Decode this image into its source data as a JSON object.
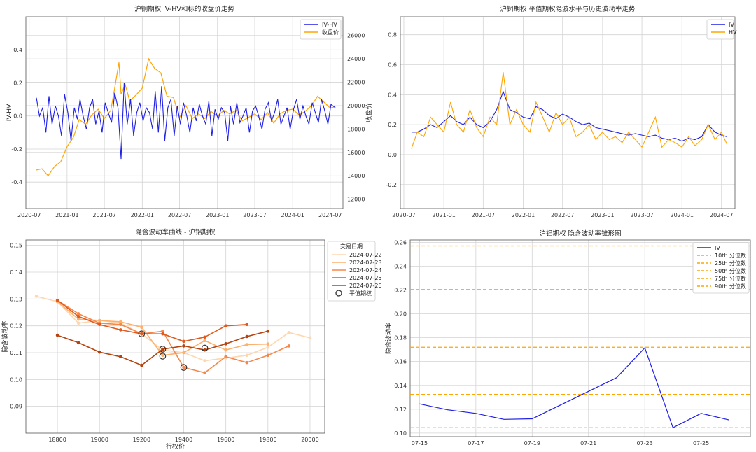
{
  "chart_data": [
    {
      "type": "line",
      "title": "沪铜期权 IV-HV和标的收盘价走势",
      "xlabel": "",
      "ylabel": "IV-HV",
      "y2label": "收盘价",
      "xlim": [
        "2020-06-15",
        "2024-09-01"
      ],
      "ylim": [
        -0.56,
        0.6
      ],
      "y2lim": [
        11200,
        27600
      ],
      "x_ticks": [
        "2020-07",
        "2021-01",
        "2021-07",
        "2022-01",
        "2022-07",
        "2023-01",
        "2023-07",
        "2024-01",
        "2024-07"
      ],
      "y_ticks": [
        "-0.4",
        "-0.2",
        "0.0",
        "0.2",
        "0.4"
      ],
      "y2_ticks": [
        "12000",
        "14000",
        "16000",
        "18000",
        "20000",
        "22000",
        "24000",
        "26000"
      ],
      "legend": "top-right",
      "colors": {
        "IV-HV": "#1f1fe6",
        "收盘价": "#ffa500",
        "left_axis": "#1f77b4",
        "right_axis": "#d62728"
      },
      "series": [
        {
          "name": "IV-HV",
          "axis": "left",
          "x": [
            "2020-08-05",
            "2020-08-20",
            "2020-09-05",
            "2020-09-20",
            "2020-10-05",
            "2020-10-20",
            "2020-11-05",
            "2020-11-20",
            "2020-12-05",
            "2020-12-20",
            "2021-01-05",
            "2021-01-20",
            "2021-02-05",
            "2021-02-20",
            "2021-03-05",
            "2021-03-20",
            "2021-04-05",
            "2021-04-20",
            "2021-05-05",
            "2021-05-20",
            "2021-06-05",
            "2021-06-20",
            "2021-07-05",
            "2021-07-20",
            "2021-08-05",
            "2021-08-20",
            "2021-09-05",
            "2021-09-20",
            "2021-10-05",
            "2021-10-20",
            "2021-11-05",
            "2021-11-20",
            "2021-12-05",
            "2021-12-20",
            "2022-01-05",
            "2022-01-20",
            "2022-02-05",
            "2022-02-20",
            "2022-03-05",
            "2022-03-20",
            "2022-04-05",
            "2022-04-20",
            "2022-05-05",
            "2022-05-20",
            "2022-06-05",
            "2022-06-20",
            "2022-07-05",
            "2022-07-20",
            "2022-08-05",
            "2022-08-20",
            "2022-09-05",
            "2022-09-20",
            "2022-10-05",
            "2022-10-20",
            "2022-11-05",
            "2022-11-20",
            "2022-12-05",
            "2022-12-20",
            "2023-01-05",
            "2023-01-20",
            "2023-02-05",
            "2023-02-20",
            "2023-03-05",
            "2023-03-20",
            "2023-04-05",
            "2023-04-20",
            "2023-05-05",
            "2023-05-20",
            "2023-06-05",
            "2023-06-20",
            "2023-07-05",
            "2023-07-20",
            "2023-08-05",
            "2023-08-20",
            "2023-09-05",
            "2023-09-20",
            "2023-10-05",
            "2023-10-20",
            "2023-11-05",
            "2023-11-20",
            "2023-12-05",
            "2023-12-20",
            "2024-01-05",
            "2024-01-20",
            "2024-02-05",
            "2024-02-20",
            "2024-03-05",
            "2024-03-20",
            "2024-04-05",
            "2024-04-20",
            "2024-05-05",
            "2024-05-20",
            "2024-06-05",
            "2024-06-20",
            "2024-07-05",
            "2024-07-26"
          ],
          "values": [
            0.11,
            0.0,
            0.05,
            -0.1,
            0.12,
            -0.05,
            0.06,
            0.0,
            -0.12,
            0.13,
            0.02,
            -0.15,
            0.05,
            -0.02,
            0.1,
            0.0,
            -0.08,
            0.05,
            0.1,
            -0.05,
            0.03,
            -0.1,
            0.08,
            0.02,
            -0.04,
            0.14,
            0.05,
            -0.26,
            0.2,
            -0.05,
            0.1,
            -0.12,
            0.02,
            0.08,
            -0.03,
            0.05,
            0.02,
            -0.08,
            0.15,
            -0.1,
            0.18,
            -0.15,
            0.05,
            0.1,
            -0.12,
            0.06,
            -0.05,
            0.08,
            0.0,
            -0.1,
            0.05,
            -0.03,
            0.07,
            0.0,
            -0.05,
            0.09,
            -0.12,
            0.04,
            -0.02,
            0.05,
            0.02,
            -0.15,
            0.06,
            -0.05,
            0.08,
            -0.04,
            0.0,
            0.05,
            -0.1,
            0.03,
            0.06,
            0.0,
            -0.08,
            0.04,
            0.08,
            -0.03,
            0.02,
            0.1,
            -0.05,
            0.0,
            0.05,
            -0.08,
            0.04,
            0.1,
            -0.02,
            0.06,
            0.0,
            -0.05,
            0.08,
            0.02,
            -0.04,
            0.1,
            0.03,
            -0.05,
            0.07,
            0.05
          ]
        },
        {
          "name": "收盘价",
          "axis": "right",
          "x": [
            "2020-08-05",
            "2020-09-01",
            "2020-10-01",
            "2020-11-01",
            "2020-12-01",
            "2021-01-01",
            "2021-02-01",
            "2021-03-01",
            "2021-04-01",
            "2021-05-01",
            "2021-06-01",
            "2021-07-01",
            "2021-08-01",
            "2021-08-20",
            "2021-09-10",
            "2021-09-20",
            "2021-10-10",
            "2021-11-01",
            "2021-12-01",
            "2022-01-01",
            "2022-02-01",
            "2022-03-01",
            "2022-04-01",
            "2022-05-01",
            "2022-06-01",
            "2022-07-01",
            "2022-08-01",
            "2022-09-01",
            "2022-10-01",
            "2022-11-01",
            "2022-12-01",
            "2023-01-01",
            "2023-02-01",
            "2023-03-01",
            "2023-04-01",
            "2023-05-01",
            "2023-06-01",
            "2023-07-01",
            "2023-08-01",
            "2023-09-01",
            "2023-10-01",
            "2023-11-01",
            "2023-12-01",
            "2024-01-01",
            "2024-02-01",
            "2024-03-01",
            "2024-04-01",
            "2024-05-01",
            "2024-06-01",
            "2024-07-01",
            "2024-07-26"
          ],
          "values": [
            14500,
            14600,
            14000,
            14800,
            15200,
            16500,
            17300,
            18800,
            18400,
            19200,
            19700,
            18900,
            19600,
            21500,
            23700,
            21000,
            21800,
            20400,
            20900,
            21500,
            24000,
            23200,
            22800,
            20800,
            20700,
            19000,
            20000,
            18900,
            19300,
            18900,
            19500,
            19100,
            19600,
            19300,
            19600,
            18700,
            19000,
            19300,
            18800,
            19400,
            18500,
            19300,
            19600,
            19700,
            19200,
            19500,
            20000,
            20800,
            20300,
            19800,
            19900
          ]
        }
      ]
    },
    {
      "type": "line",
      "title": "沪铜期权 平值期权隐波水平与历史波动率走势",
      "xlabel": "",
      "ylabel": "",
      "xlim": [
        "2020-06-15",
        "2024-09-01"
      ],
      "ylim": [
        -0.36,
        0.92
      ],
      "x_ticks": [
        "2020-07",
        "2021-01",
        "2021-07",
        "2022-01",
        "2022-07",
        "2023-01",
        "2023-07",
        "2024-01",
        "2024-07"
      ],
      "y_ticks": [
        "-0.2",
        "0.0",
        "0.2",
        "0.4",
        "0.6",
        "0.8"
      ],
      "legend": "top-right",
      "colors": {
        "IV": "#1f1fe6",
        "HV": "#ffa500"
      },
      "series": [
        {
          "name": "IV",
          "x": [
            "2020-08-05",
            "2020-09-01",
            "2020-10-01",
            "2020-11-01",
            "2020-12-01",
            "2021-01-01",
            "2021-02-01",
            "2021-03-01",
            "2021-04-01",
            "2021-05-01",
            "2021-06-01",
            "2021-07-01",
            "2021-08-01",
            "2021-09-01",
            "2021-10-01",
            "2021-11-01",
            "2021-12-01",
            "2022-01-01",
            "2022-02-01",
            "2022-03-01",
            "2022-04-01",
            "2022-05-01",
            "2022-06-01",
            "2022-07-01",
            "2022-08-01",
            "2022-09-01",
            "2022-10-01",
            "2022-11-01",
            "2022-12-01",
            "2023-01-01",
            "2023-02-01",
            "2023-03-01",
            "2023-04-01",
            "2023-05-01",
            "2023-06-01",
            "2023-07-01",
            "2023-08-01",
            "2023-09-01",
            "2023-10-01",
            "2023-11-01",
            "2023-12-01",
            "2024-01-01",
            "2024-02-01",
            "2024-03-01",
            "2024-04-01",
            "2024-05-01",
            "2024-06-01",
            "2024-07-01",
            "2024-07-26"
          ],
          "values": [
            0.15,
            0.15,
            0.17,
            0.2,
            0.18,
            0.22,
            0.26,
            0.22,
            0.2,
            0.25,
            0.2,
            0.18,
            0.22,
            0.3,
            0.42,
            0.3,
            0.28,
            0.25,
            0.24,
            0.32,
            0.3,
            0.26,
            0.24,
            0.27,
            0.25,
            0.22,
            0.2,
            0.21,
            0.18,
            0.17,
            0.16,
            0.15,
            0.14,
            0.13,
            0.14,
            0.13,
            0.12,
            0.13,
            0.11,
            0.1,
            0.11,
            0.09,
            0.11,
            0.1,
            0.12,
            0.2,
            0.15,
            0.13,
            0.12
          ]
        },
        {
          "name": "HV",
          "x": [
            "2020-08-05",
            "2020-09-01",
            "2020-10-01",
            "2020-11-01",
            "2020-12-01",
            "2021-01-01",
            "2021-02-01",
            "2021-03-01",
            "2021-04-01",
            "2021-05-01",
            "2021-06-01",
            "2021-07-01",
            "2021-08-01",
            "2021-09-01",
            "2021-10-01",
            "2021-11-01",
            "2021-12-01",
            "2022-01-01",
            "2022-02-01",
            "2022-03-01",
            "2022-04-01",
            "2022-05-01",
            "2022-06-01",
            "2022-07-01",
            "2022-08-01",
            "2022-09-01",
            "2022-10-01",
            "2022-11-01",
            "2022-12-01",
            "2023-01-01",
            "2023-02-01",
            "2023-03-01",
            "2023-04-01",
            "2023-05-01",
            "2023-06-01",
            "2023-07-01",
            "2023-08-01",
            "2023-09-01",
            "2023-10-01",
            "2023-11-01",
            "2023-12-01",
            "2024-01-01",
            "2024-02-01",
            "2024-03-01",
            "2024-04-01",
            "2024-05-01",
            "2024-06-01",
            "2024-07-01",
            "2024-07-26"
          ],
          "values": [
            0.04,
            0.15,
            0.12,
            0.25,
            0.2,
            0.15,
            0.35,
            0.2,
            0.15,
            0.3,
            0.18,
            0.12,
            0.25,
            0.2,
            0.55,
            0.2,
            0.3,
            0.2,
            0.15,
            0.35,
            0.25,
            0.15,
            0.28,
            0.2,
            0.25,
            0.12,
            0.15,
            0.2,
            0.1,
            0.15,
            0.1,
            0.12,
            0.08,
            0.15,
            0.1,
            0.05,
            0.15,
            0.25,
            0.05,
            0.1,
            0.08,
            0.05,
            0.12,
            0.06,
            0.1,
            0.2,
            0.1,
            0.15,
            0.07
          ]
        }
      ]
    },
    {
      "type": "line",
      "title": "隐含波动率曲线 - 沪铝期权",
      "xlabel": "行权价",
      "ylabel": "隐含波动率",
      "xlim": [
        18650,
        20070
      ],
      "ylim": [
        0.08,
        0.152
      ],
      "x_ticks": [
        "18800",
        "19000",
        "19200",
        "19400",
        "19600",
        "19800",
        "20000"
      ],
      "y_ticks": [
        "0.09",
        "0.10",
        "0.11",
        "0.12",
        "0.13",
        "0.14",
        "0.15"
      ],
      "legend_title": "交易日期",
      "legend": "top-right",
      "atm_label": "平值期权",
      "series": [
        {
          "name": "2024-07-22",
          "color": "#fdd7b0",
          "x": [
            18700,
            18800,
            18900,
            19000,
            19100,
            19200,
            19300,
            19400,
            19500,
            19600,
            19700,
            19800,
            19900,
            20000
          ],
          "values": [
            0.131,
            0.129,
            0.121,
            0.122,
            0.121,
            0.117,
            0.111,
            0.11,
            0.107,
            0.108,
            0.109,
            0.112,
            0.1175,
            0.1155
          ]
        },
        {
          "name": "2024-07-23",
          "color": "#fdaf6c",
          "x": [
            18800,
            18900,
            19000,
            19100,
            19200,
            19300,
            19400,
            19500,
            19600,
            19700,
            19800
          ],
          "values": [
            0.129,
            0.1225,
            0.122,
            0.1215,
            0.1195,
            0.109,
            0.11,
            0.1145,
            0.111,
            0.113,
            0.1132
          ]
        },
        {
          "name": "2024-07-24",
          "color": "#f5874a",
          "x": [
            18800,
            18900,
            19000,
            19100,
            19200,
            19300,
            19400,
            19500,
            19600,
            19700,
            19800,
            19900
          ],
          "values": [
            0.1295,
            0.1245,
            0.121,
            0.1205,
            0.117,
            0.118,
            0.1045,
            0.1025,
            0.1085,
            0.1063,
            0.109,
            0.1125
          ]
        },
        {
          "name": "2024-07-25",
          "color": "#e05a1d",
          "x": [
            18800,
            18900,
            19000,
            19100,
            19200,
            19300,
            19400,
            19500,
            19600,
            19700
          ],
          "values": [
            0.1295,
            0.1235,
            0.1205,
            0.1185,
            0.117,
            0.117,
            0.1142,
            0.1158,
            0.12,
            0.1205
          ]
        },
        {
          "name": "2024-07-26",
          "color": "#b4430f",
          "x": [
            18800,
            18900,
            19000,
            19100,
            19200,
            19300,
            19400,
            19500,
            19600,
            19700,
            19800
          ],
          "values": [
            0.1165,
            0.1137,
            0.1102,
            0.1085,
            0.1053,
            0.1113,
            0.1125,
            0.111,
            0.1133,
            0.116,
            0.118
          ]
        }
      ],
      "atm_points": [
        {
          "x": 19200,
          "y": 0.117
        },
        {
          "x": 19300,
          "y": 0.1113
        },
        {
          "x": 19300,
          "y": 0.1087
        },
        {
          "x": 19400,
          "y": 0.1045
        },
        {
          "x": 19500,
          "y": 0.1117
        }
      ]
    },
    {
      "type": "line",
      "title": "沪铝期权 隐含波动率锥形图",
      "xlabel": "",
      "ylabel": "隐含波动率",
      "xlim": [
        "2024-07-14 16:00",
        "2024-07-26 18:00"
      ],
      "ylim": [
        0.097,
        0.262
      ],
      "x_ticks": [
        "07-15",
        "07-17",
        "07-19",
        "07-21",
        "07-23",
        "07-25"
      ],
      "y_ticks": [
        "0.10",
        "0.12",
        "0.14",
        "0.16",
        "0.18",
        "0.20",
        "0.22",
        "0.24",
        "0.26"
      ],
      "legend": "top-right",
      "colors": {
        "IV": "#1f1fe6",
        "percentiles": "#ffa500"
      },
      "series": [
        {
          "name": "IV",
          "x": [
            "2024-07-15",
            "2024-07-16",
            "2024-07-17",
            "2024-07-18",
            "2024-07-19",
            "2024-07-22",
            "2024-07-23",
            "2024-07-24",
            "2024-07-25",
            "2024-07-26"
          ],
          "values": [
            0.1245,
            0.1195,
            0.1165,
            0.1115,
            0.112,
            0.1465,
            0.1715,
            0.1045,
            0.1165,
            0.111
          ]
        }
      ],
      "percentiles": [
        {
          "name": "10th 分位数",
          "value": 0.1045
        },
        {
          "name": "25th 分位数",
          "value": 0.1325
        },
        {
          "name": "50th 分位数",
          "value": 0.172
        },
        {
          "name": "75th 分位数",
          "value": 0.2205
        },
        {
          "name": "90th 分位数",
          "value": 0.257
        }
      ]
    }
  ]
}
